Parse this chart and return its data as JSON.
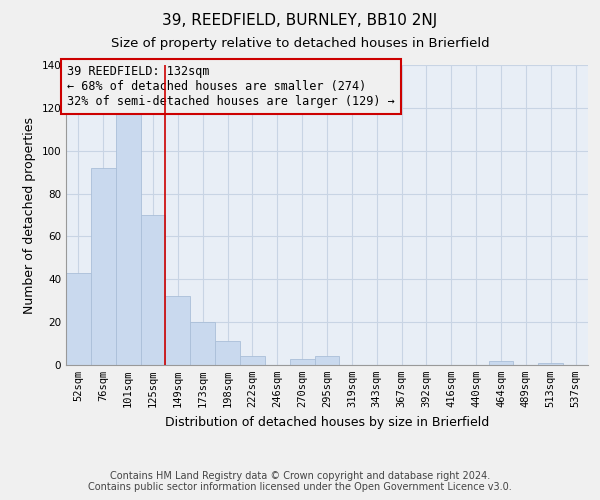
{
  "title": "39, REEDFIELD, BURNLEY, BB10 2NJ",
  "subtitle": "Size of property relative to detached houses in Brierfield",
  "xlabel": "Distribution of detached houses by size in Brierfield",
  "ylabel": "Number of detached properties",
  "categories": [
    "52sqm",
    "76sqm",
    "101sqm",
    "125sqm",
    "149sqm",
    "173sqm",
    "198sqm",
    "222sqm",
    "246sqm",
    "270sqm",
    "295sqm",
    "319sqm",
    "343sqm",
    "367sqm",
    "392sqm",
    "416sqm",
    "440sqm",
    "464sqm",
    "489sqm",
    "513sqm",
    "537sqm"
  ],
  "values": [
    43,
    92,
    117,
    70,
    32,
    20,
    11,
    4,
    0,
    3,
    4,
    0,
    0,
    0,
    0,
    0,
    0,
    2,
    0,
    1,
    0
  ],
  "bar_color": "#c9d9ee",
  "bar_edge_color": "#aabfd8",
  "vline_x": 3.5,
  "vline_color": "#cc0000",
  "annotation_title": "39 REEDFIELD: 132sqm",
  "annotation_line1": "← 68% of detached houses are smaller (274)",
  "annotation_line2": "32% of semi-detached houses are larger (129) →",
  "annotation_box_edge": "#cc0000",
  "ylim": [
    0,
    140
  ],
  "yticks": [
    0,
    20,
    40,
    60,
    80,
    100,
    120,
    140
  ],
  "footer1": "Contains HM Land Registry data © Crown copyright and database right 2024.",
  "footer2": "Contains public sector information licensed under the Open Government Licence v3.0.",
  "plot_bg_color": "#e8eef6",
  "fig_bg_color": "#f0f0f0",
  "grid_color": "#c8d4e4",
  "title_fontsize": 11,
  "subtitle_fontsize": 9.5,
  "axis_label_fontsize": 9,
  "tick_fontsize": 7.5,
  "annotation_fontsize": 8.5,
  "footer_fontsize": 7
}
